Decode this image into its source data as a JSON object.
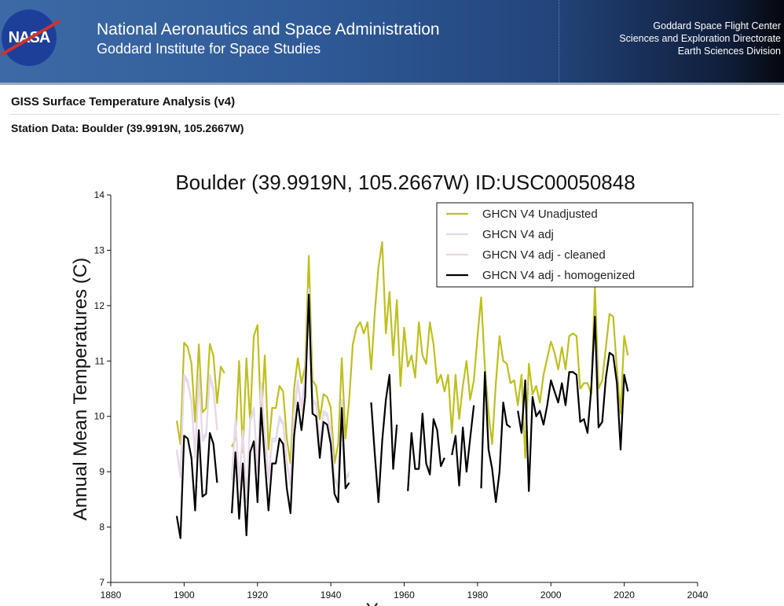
{
  "header": {
    "agency": "National Aeronautics and Space Administration",
    "institute": "Goddard Institute for Space Studies",
    "logo_text": "NASA",
    "right_lines": [
      "Goddard Space Flight Center",
      "Sciences and Exploration Directorate",
      "Earth Sciences Division"
    ]
  },
  "page": {
    "title": "GISS Surface Temperature Analysis (v4)",
    "station": "Station Data: Boulder (39.9919N, 105.2667W)"
  },
  "chart_data": {
    "type": "line",
    "title": "Boulder (39.9919N, 105.2667W) ID:USC00050848",
    "xlabel": "Year",
    "ylabel": "Annual Mean Temperatures (C)",
    "xlim": [
      1880,
      2040
    ],
    "ylim": [
      7,
      14
    ],
    "xticks": [
      1880,
      1900,
      1920,
      1940,
      1960,
      1980,
      2000,
      2020,
      2040
    ],
    "yticks": [
      7,
      8,
      9,
      10,
      11,
      12,
      13,
      14
    ],
    "legend_position": "top-right",
    "series": [
      {
        "name": "GHCN V4 Unadjusted",
        "color": "#bfbf1f",
        "start_year": 1898,
        "values": [
          9.92,
          9.5,
          11.33,
          11.25,
          10.96,
          9.9,
          11.3,
          10.07,
          10.15,
          11.31,
          11.09,
          10.24,
          10.9,
          10.78,
          null,
          9.45,
          9.6,
          11.0,
          9.35,
          11.05,
          9.9,
          11.45,
          11.65,
          9.9,
          11.1,
          9.4,
          10.15,
          10.15,
          10.55,
          10.45,
          9.6,
          9.15,
          10.5,
          11.05,
          10.6,
          10.9,
          12.9,
          10.65,
          10.55,
          9.95,
          10.4,
          10.35,
          10.15,
          9.15,
          9.5,
          11.05,
          9.6,
          10.3,
          11.3,
          11.6,
          11.7,
          11.5,
          11.7,
          10.85,
          11.9,
          12.7,
          13.15,
          11.5,
          12.25,
          11.1,
          12.1,
          10.55,
          11.6,
          10.9,
          11.1,
          10.7,
          11.7,
          11.1,
          10.95,
          11.7,
          11.3,
          10.6,
          10.75,
          10.45,
          10.75,
          9.7,
          10.75,
          9.95,
          10.55,
          11.0,
          10.3,
          10.65,
          11.45,
          12.15,
          10.9,
          10.05,
          9.5,
          10.6,
          11.45,
          11.0,
          10.95,
          10.6,
          10.65,
          10.2,
          10.75,
          9.25,
          10.95,
          10.4,
          10.55,
          10.25,
          10.75,
          11.05,
          11.35,
          11.15,
          10.85,
          11.25,
          10.85,
          11.45,
          11.5,
          11.45,
          10.5,
          10.6,
          10.6,
          10.4,
          12.35,
          10.5,
          10.65,
          11.25,
          11.85,
          11.8,
          10.85,
          10.05,
          11.45,
          11.1
        ]
      },
      {
        "name": "GHCN V4 adj",
        "color": "#dcdcf0",
        "start_year": 1898,
        "values": [
          9.4,
          8.95,
          10.75,
          10.65,
          10.3,
          9.3,
          10.75,
          9.6,
          9.7,
          10.75,
          10.5,
          9.8,
          null,
          null,
          null,
          8.9,
          9.95,
          8.8,
          9.75,
          8.5,
          9.95,
          10.15,
          9.1,
          10.6,
          9.7,
          8.9,
          9.6,
          9.6,
          10.0,
          9.9,
          9.2,
          8.8,
          10.1,
          10.65,
          10.15,
          10.75,
          12.3,
          10.3,
          10.25,
          9.55,
          10.1,
          10.05,
          9.75,
          8.9,
          8.75,
          10.3,
          8.9,
          9.0
        ]
      },
      {
        "name": "GHCN V4 adj - cleaned",
        "color": "#ead8e6",
        "start_year": 1898,
        "values": [
          9.35,
          8.9,
          10.7,
          10.6,
          10.25,
          9.25,
          10.7,
          9.55,
          9.65,
          10.7,
          10.45,
          9.75,
          null,
          null,
          null,
          8.85,
          9.9,
          8.75,
          9.7,
          8.45,
          9.9,
          10.1,
          9.05,
          10.55,
          9.65,
          8.85,
          9.55,
          9.55,
          9.95,
          9.85,
          9.15,
          8.75,
          10.05,
          10.6,
          10.1,
          10.7,
          12.25,
          10.25,
          10.2,
          9.5,
          10.05,
          10.0,
          9.7,
          8.85,
          8.7,
          10.25,
          8.85,
          8.95
        ]
      },
      {
        "name": "GHCN V4 adj - homogenized",
        "color": "#000000",
        "start_year": 1898,
        "values": [
          8.2,
          7.8,
          9.65,
          9.6,
          9.25,
          8.3,
          9.75,
          8.55,
          8.6,
          9.7,
          9.5,
          8.8,
          null,
          null,
          null,
          8.25,
          9.35,
          8.15,
          9.15,
          7.85,
          9.35,
          9.55,
          8.45,
          10.15,
          9.2,
          8.3,
          9.15,
          9.15,
          9.6,
          9.5,
          8.7,
          8.25,
          9.65,
          10.25,
          9.75,
          10.35,
          12.2,
          10.05,
          10.0,
          9.25,
          9.9,
          9.85,
          9.5,
          8.6,
          8.45,
          10.15,
          8.7,
          8.8,
          null,
          null,
          null,
          null,
          null,
          10.25,
          9.3,
          8.45,
          9.55,
          10.3,
          10.75,
          9.05,
          9.85,
          null,
          null,
          8.65,
          9.7,
          9.05,
          9.05,
          10.05,
          9.15,
          8.95,
          9.95,
          9.75,
          9.1,
          9.25,
          null,
          9.3,
          9.65,
          8.75,
          9.8,
          9.0,
          9.6,
          10.2,
          null,
          8.7,
          10.8,
          9.4,
          9.05,
          8.45,
          9.0,
          10.25,
          9.85,
          9.8,
          null,
          10.1,
          9.7,
          10.65,
          8.65,
          10.35,
          10.0,
          10.1,
          9.85,
          10.2,
          10.65,
          10.45,
          10.25,
          10.6,
          10.2,
          10.8,
          10.8,
          10.75,
          9.9,
          9.95,
          9.7,
          10.5,
          11.8,
          9.8,
          9.9,
          10.7,
          11.15,
          11.1,
          10.6,
          9.4,
          10.75,
          10.45
        ]
      }
    ]
  }
}
